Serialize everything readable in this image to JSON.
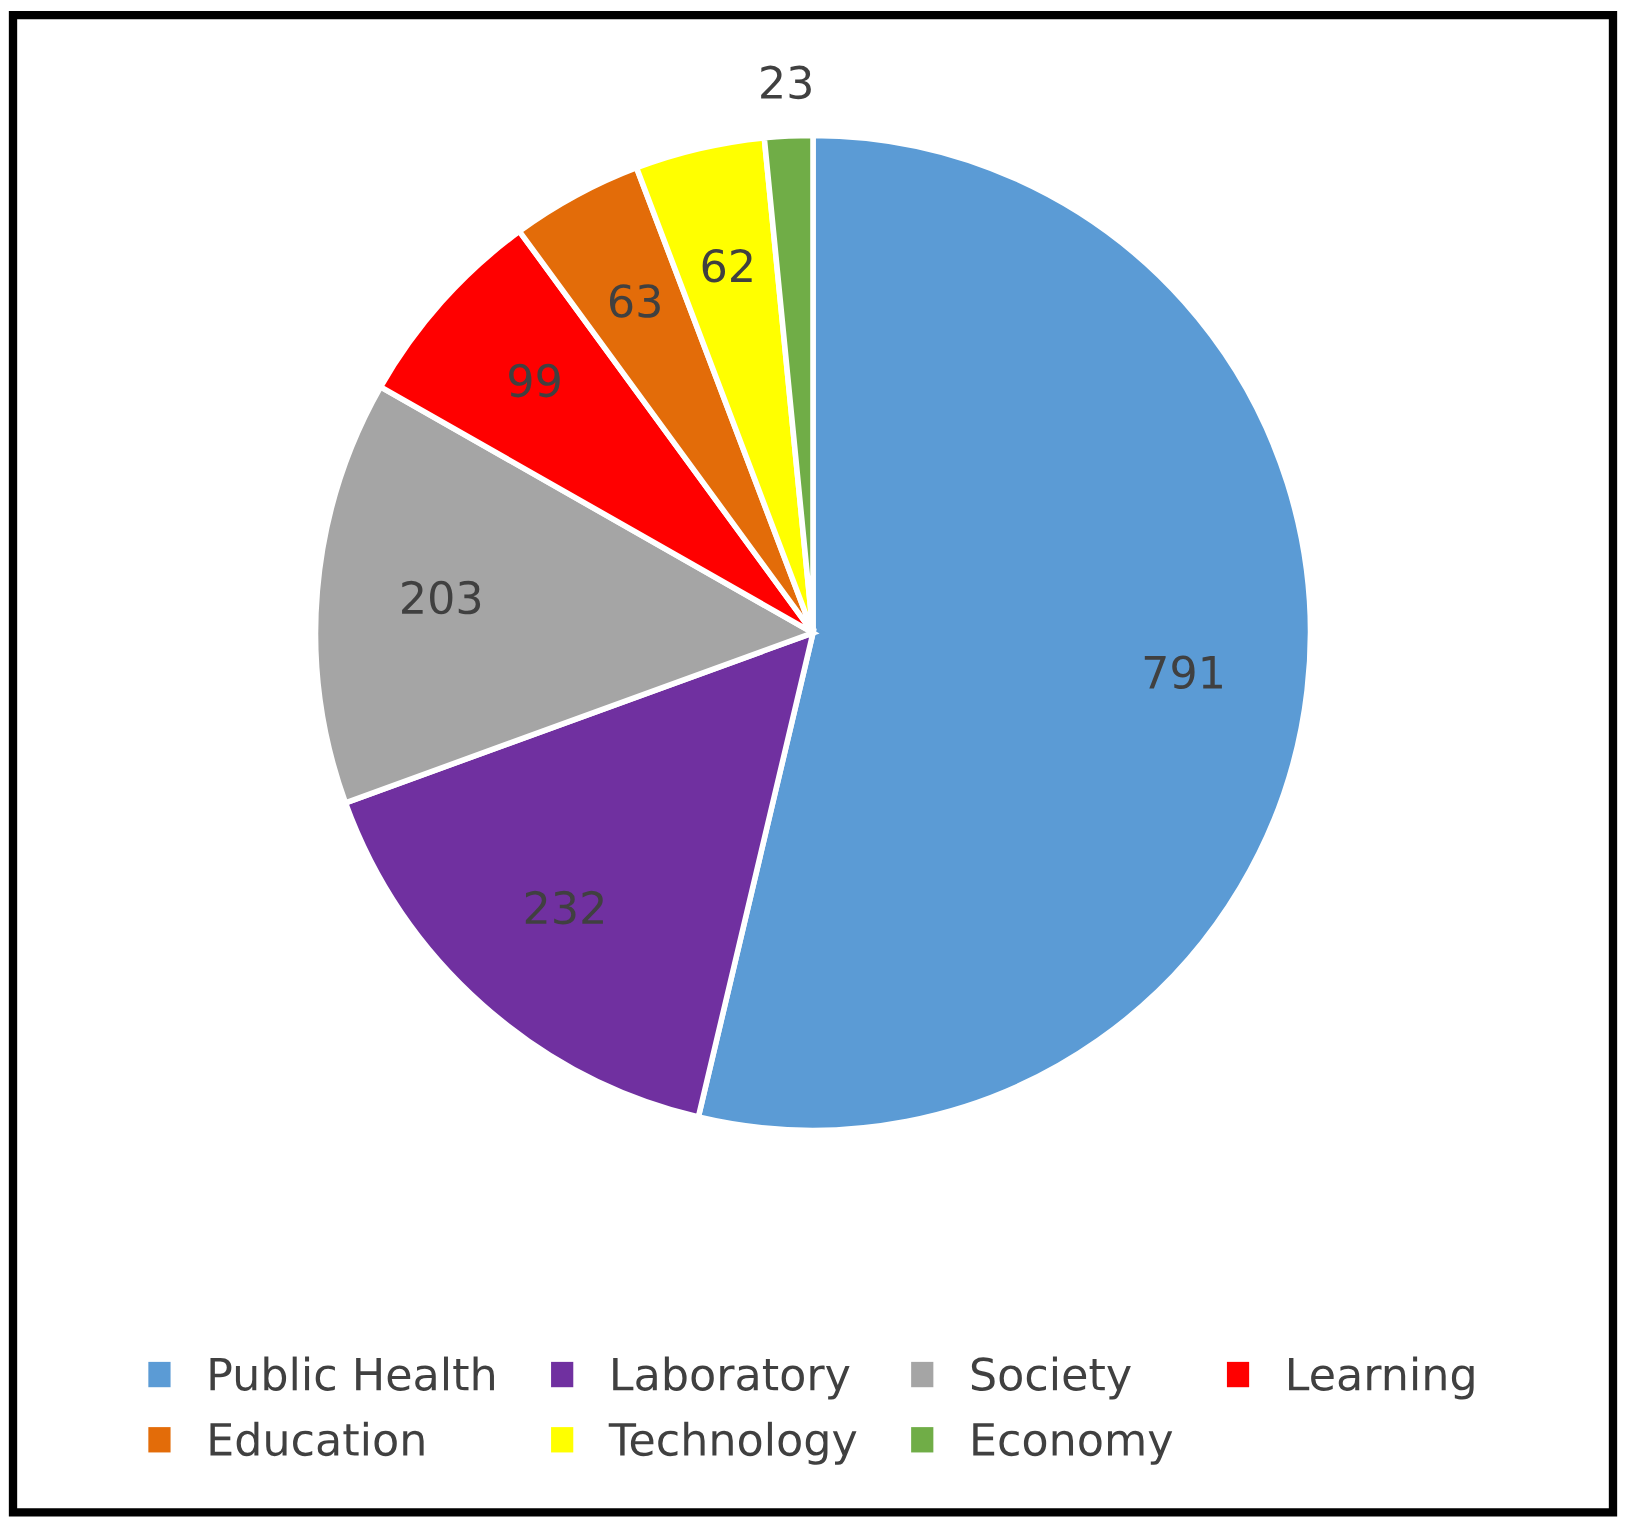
{
  "chart_data": {
    "type": "pie",
    "categories": [
      "Public Health",
      "Laboratory",
      "Society",
      "Learning",
      "Education",
      "Technology",
      "Economy"
    ],
    "values": [
      791,
      232,
      203,
      99,
      63,
      62,
      23
    ],
    "colors": [
      "#5b9bd5",
      "#7030a0",
      "#a5a5a5",
      "#ff0000",
      "#e36c09",
      "#ffff00",
      "#70ad47"
    ],
    "data_labels": true,
    "legend": "bottom"
  }
}
